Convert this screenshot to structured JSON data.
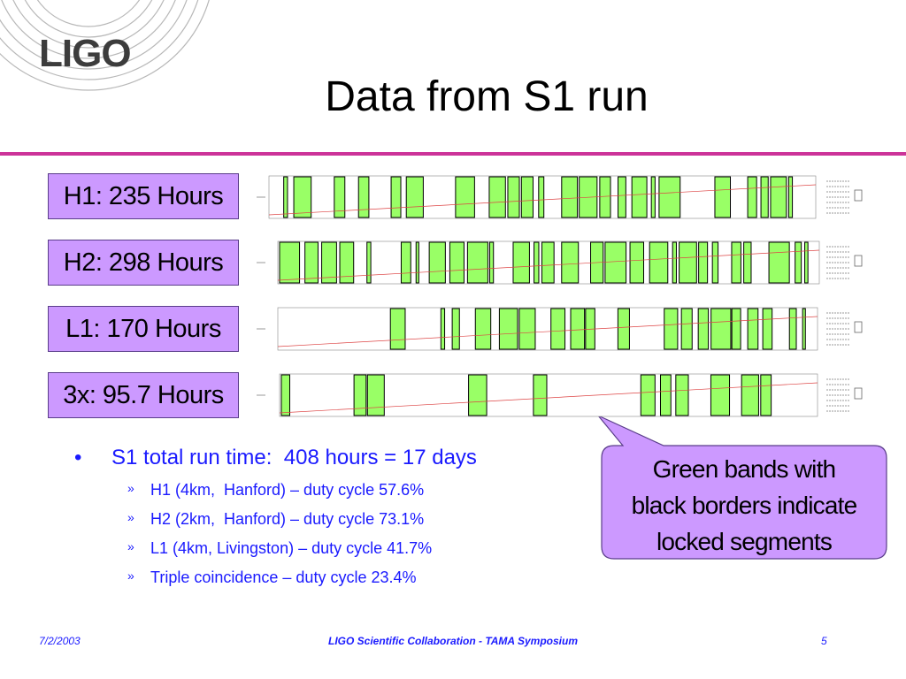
{
  "logo": {
    "text": "LIGO"
  },
  "title": "Data from S1 run",
  "colors": {
    "accent_rule": "#cc3399",
    "label_bg": "#cc99ff",
    "locked_green": "#99ff66",
    "bullet_blue": "#1a1aff"
  },
  "labels": [
    {
      "text": "H1: 235 Hours"
    },
    {
      "text": "H2: 298 Hours"
    },
    {
      "text": "L1: 170 Hours"
    },
    {
      "text": "3x: 95.7 Hours"
    }
  ],
  "bullets": {
    "main": "S1 total run time:  408 hours = 17 days",
    "sub": [
      "H1 (4km,  Hanford) – duty cycle 57.6%",
      "H2 (2km,  Hanford) – duty cycle 73.1%",
      "L1 (4km, Livingston) – duty cycle 41.7%",
      "Triple coincidence – duty cycle 23.4%"
    ]
  },
  "callout": {
    "lines": [
      "Green bands with",
      "black borders indicate",
      "locked segments"
    ]
  },
  "footer": {
    "date": "7/2/2003",
    "center": "LIGO Scientific Collaboration - TAMA Symposium",
    "page": "5"
  }
}
